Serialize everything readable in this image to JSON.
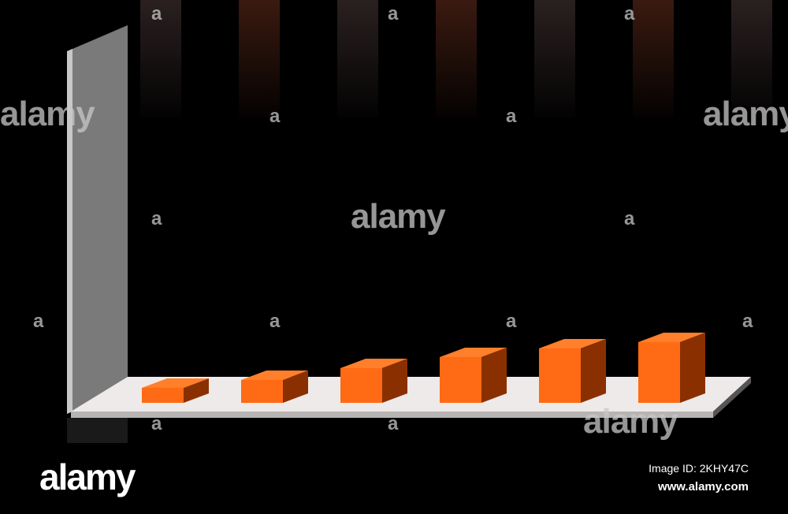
{
  "chart_data": {
    "type": "bar",
    "style": "3d",
    "title": "",
    "xlabel": "",
    "ylabel": "",
    "categories": [
      "",
      "",
      "",
      "",
      "",
      ""
    ],
    "values": [
      19,
      29,
      44,
      58,
      69,
      77
    ],
    "ylim": [
      0,
      120
    ],
    "grid": false,
    "legend": "none",
    "colors": {
      "bar_front": "#ff6a14",
      "bar_top": "#ff7f2a",
      "bar_side": "#8a3000",
      "wall": "#7a7a7a",
      "floor": "#eeeaea",
      "background": "#000000"
    }
  },
  "watermark": {
    "brand": "alamy",
    "short": "a",
    "image_id": "Image ID: 2KHY47C",
    "site": "www.alamy.com"
  }
}
